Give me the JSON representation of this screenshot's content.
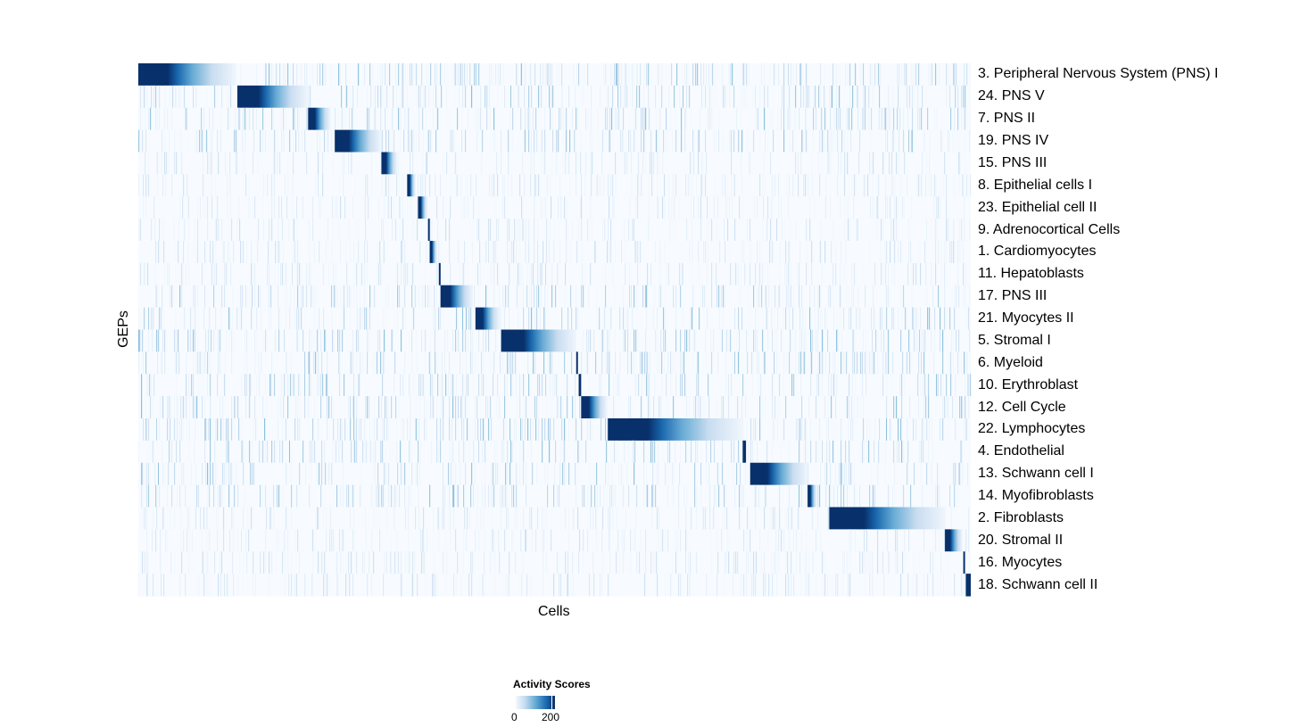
{
  "chart_data": {
    "type": "heatmap",
    "xlabel": "Cells",
    "ylabel": "GEPs",
    "colorbar": {
      "title": "Activity Scores",
      "ticks": [
        0,
        200
      ],
      "range": [
        0,
        215
      ],
      "colormap": [
        "#f7fbff",
        "#deebf7",
        "#c6dbef",
        "#9ecae1",
        "#6baed6",
        "#4292c6",
        "#2171b5",
        "#08519c",
        "#08306b"
      ]
    },
    "rows": [
      {
        "label": "3. Peripheral Nervous System (PNS) I",
        "cell_rank_pct": [
          0.0,
          11.8
        ]
      },
      {
        "label": "24. PNS V",
        "cell_rank_pct": [
          11.9,
          20.4
        ]
      },
      {
        "label": "7. PNS II",
        "cell_rank_pct": [
          20.4,
          23.1
        ]
      },
      {
        "label": "19. PNS IV",
        "cell_rank_pct": [
          23.6,
          29.2
        ]
      },
      {
        "label": "15. PNS III",
        "cell_rank_pct": [
          29.2,
          31.1
        ]
      },
      {
        "label": "8. Epithelial cells I",
        "cell_rank_pct": [
          32.3,
          33.3
        ]
      },
      {
        "label": "23. Epithelial cell II",
        "cell_rank_pct": [
          33.6,
          34.7
        ]
      },
      {
        "label": "9. Adrenocortical Cells",
        "cell_rank_pct": [
          34.8,
          35.0
        ]
      },
      {
        "label": "1. Cardiomyocytes",
        "cell_rank_pct": [
          35.0,
          35.9
        ]
      },
      {
        "label": "11. Hepatoblasts",
        "cell_rank_pct": [
          36.1,
          36.3
        ]
      },
      {
        "label": "17. PNS III",
        "cell_rank_pct": [
          36.3,
          40.2
        ]
      },
      {
        "label": "21. Myocytes II",
        "cell_rank_pct": [
          40.5,
          43.4
        ]
      },
      {
        "label": "5. Stromal I",
        "cell_rank_pct": [
          43.6,
          52.6
        ]
      },
      {
        "label": "6. Myeloid",
        "cell_rank_pct": [
          52.6,
          52.8
        ]
      },
      {
        "label": "10. Erythroblast",
        "cell_rank_pct": [
          52.9,
          53.2
        ]
      },
      {
        "label": "12. Cell Cycle",
        "cell_rank_pct": [
          53.2,
          56.3
        ]
      },
      {
        "label": "22. Lymphocytes",
        "cell_rank_pct": [
          56.4,
          72.6
        ]
      },
      {
        "label": "4. Endothelial",
        "cell_rank_pct": [
          72.6,
          73.0
        ]
      },
      {
        "label": "13. Schwann cell I",
        "cell_rank_pct": [
          73.5,
          80.4
        ]
      },
      {
        "label": "14. Myofibroblasts",
        "cell_rank_pct": [
          80.4,
          81.5
        ]
      },
      {
        "label": "2. Fibroblasts",
        "cell_rank_pct": [
          83.0,
          97.0
        ]
      },
      {
        "label": "20. Stromal II",
        "cell_rank_pct": [
          96.9,
          99.0
        ]
      },
      {
        "label": "16. Myocytes",
        "cell_rank_pct": [
          99.1,
          99.3
        ]
      },
      {
        "label": "18. Schwann cell II",
        "cell_rank_pct": [
          99.4,
          100.0
        ]
      }
    ]
  }
}
